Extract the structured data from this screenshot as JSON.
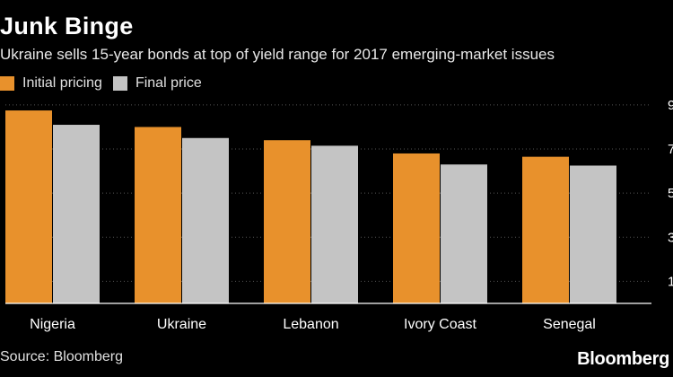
{
  "header": {
    "title": "Junk Binge",
    "subtitle": "Ukraine sells 15-year bonds at top of yield range for 2017 emerging-market issues"
  },
  "legend": {
    "items": [
      {
        "label": "Initial pricing",
        "color": "#e8912c"
      },
      {
        "label": "Final price",
        "color": "#c4c4c4"
      }
    ]
  },
  "footer": {
    "source": "Source: Bloomberg",
    "brand": "Bloomberg"
  },
  "colors": {
    "background": "#000000",
    "initial": "#e8912c",
    "final": "#c4c4c4",
    "grid": "#555555",
    "axis": "#ffffff"
  },
  "chart_data": {
    "type": "bar",
    "categories": [
      "Nigeria",
      "Ukraine",
      "Lebanon",
      "Ivory Coast",
      "Senegal"
    ],
    "series": [
      {
        "name": "Initial pricing",
        "values": [
          8.75,
          8.0,
          7.4,
          6.8,
          6.65
        ]
      },
      {
        "name": "Final price",
        "values": [
          8.1,
          7.5,
          7.15,
          6.3,
          6.25
        ]
      }
    ],
    "y_ticks": [
      "9",
      "7",
      "5",
      "3",
      "1"
    ],
    "ylim": [
      0,
      9.2
    ],
    "grid": true,
    "legend_position": "top-left"
  }
}
